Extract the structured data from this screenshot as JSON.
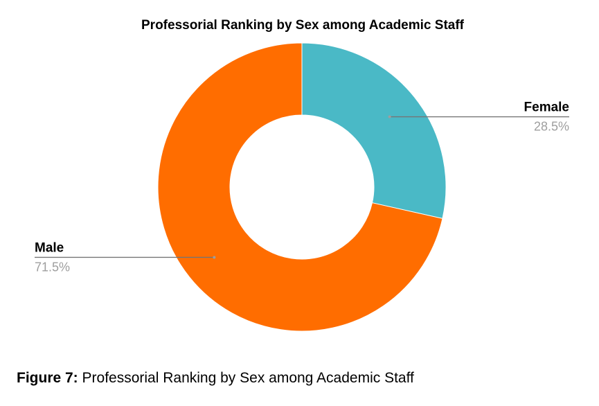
{
  "chart_data": {
    "type": "pie",
    "variant": "donut",
    "title": "Professorial Ranking by Sex among Academic Staff",
    "slices": [
      {
        "label": "Female",
        "value": 28.5,
        "display": "28.5%",
        "color": "#4ab9c6"
      },
      {
        "label": "Male",
        "value": 71.5,
        "display": "71.5%",
        "color": "#ff6d00"
      }
    ],
    "legend": "none",
    "start_angle": "12 o'clock",
    "direction": "clockwise"
  },
  "caption": {
    "prefix": "Figure 7:",
    "text": " Professorial Ranking by Sex among Academic Staff"
  }
}
